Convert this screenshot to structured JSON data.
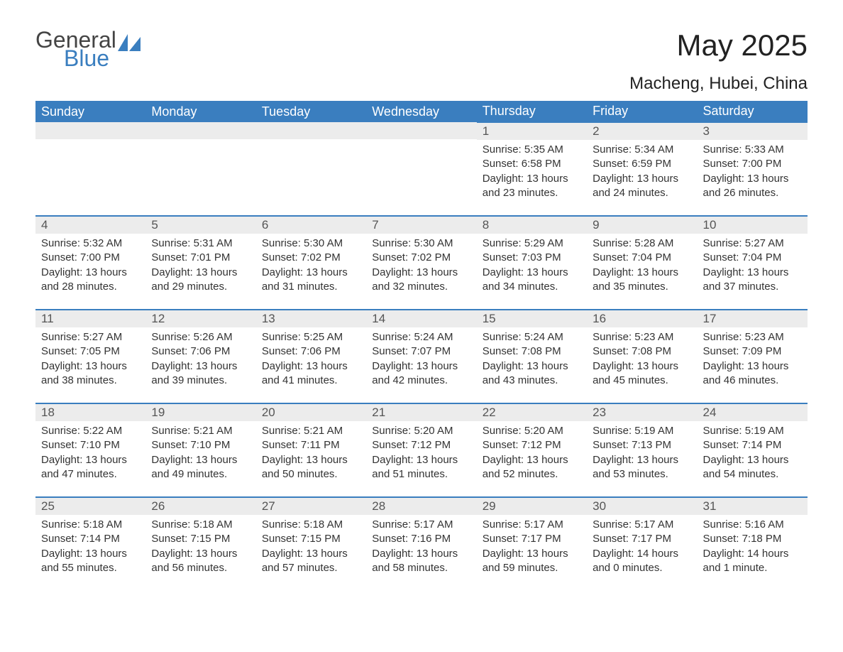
{
  "brand": {
    "word1": "General",
    "word2": "Blue"
  },
  "colors": {
    "brand_blue": "#3a7ebf",
    "header_bg": "#3a7ebf",
    "header_text": "#ffffff",
    "daynum_bg": "#ececec",
    "daynum_text": "#555555",
    "body_text": "#333333",
    "page_bg": "#ffffff",
    "row_divider": "#3a7ebf"
  },
  "title": "May 2025",
  "location": "Macheng, Hubei, China",
  "day_headers": [
    "Sunday",
    "Monday",
    "Tuesday",
    "Wednesday",
    "Thursday",
    "Friday",
    "Saturday"
  ],
  "typography": {
    "title_fontsize": 42,
    "location_fontsize": 24,
    "header_fontsize": 18,
    "daynum_fontsize": 17,
    "body_fontsize": 15
  },
  "weeks": [
    [
      null,
      null,
      null,
      null,
      {
        "n": "1",
        "sr": "Sunrise: 5:35 AM",
        "ss": "Sunset: 6:58 PM",
        "dl": "Daylight: 13 hours and 23 minutes."
      },
      {
        "n": "2",
        "sr": "Sunrise: 5:34 AM",
        "ss": "Sunset: 6:59 PM",
        "dl": "Daylight: 13 hours and 24 minutes."
      },
      {
        "n": "3",
        "sr": "Sunrise: 5:33 AM",
        "ss": "Sunset: 7:00 PM",
        "dl": "Daylight: 13 hours and 26 minutes."
      }
    ],
    [
      {
        "n": "4",
        "sr": "Sunrise: 5:32 AM",
        "ss": "Sunset: 7:00 PM",
        "dl": "Daylight: 13 hours and 28 minutes."
      },
      {
        "n": "5",
        "sr": "Sunrise: 5:31 AM",
        "ss": "Sunset: 7:01 PM",
        "dl": "Daylight: 13 hours and 29 minutes."
      },
      {
        "n": "6",
        "sr": "Sunrise: 5:30 AM",
        "ss": "Sunset: 7:02 PM",
        "dl": "Daylight: 13 hours and 31 minutes."
      },
      {
        "n": "7",
        "sr": "Sunrise: 5:30 AM",
        "ss": "Sunset: 7:02 PM",
        "dl": "Daylight: 13 hours and 32 minutes."
      },
      {
        "n": "8",
        "sr": "Sunrise: 5:29 AM",
        "ss": "Sunset: 7:03 PM",
        "dl": "Daylight: 13 hours and 34 minutes."
      },
      {
        "n": "9",
        "sr": "Sunrise: 5:28 AM",
        "ss": "Sunset: 7:04 PM",
        "dl": "Daylight: 13 hours and 35 minutes."
      },
      {
        "n": "10",
        "sr": "Sunrise: 5:27 AM",
        "ss": "Sunset: 7:04 PM",
        "dl": "Daylight: 13 hours and 37 minutes."
      }
    ],
    [
      {
        "n": "11",
        "sr": "Sunrise: 5:27 AM",
        "ss": "Sunset: 7:05 PM",
        "dl": "Daylight: 13 hours and 38 minutes."
      },
      {
        "n": "12",
        "sr": "Sunrise: 5:26 AM",
        "ss": "Sunset: 7:06 PM",
        "dl": "Daylight: 13 hours and 39 minutes."
      },
      {
        "n": "13",
        "sr": "Sunrise: 5:25 AM",
        "ss": "Sunset: 7:06 PM",
        "dl": "Daylight: 13 hours and 41 minutes."
      },
      {
        "n": "14",
        "sr": "Sunrise: 5:24 AM",
        "ss": "Sunset: 7:07 PM",
        "dl": "Daylight: 13 hours and 42 minutes."
      },
      {
        "n": "15",
        "sr": "Sunrise: 5:24 AM",
        "ss": "Sunset: 7:08 PM",
        "dl": "Daylight: 13 hours and 43 minutes."
      },
      {
        "n": "16",
        "sr": "Sunrise: 5:23 AM",
        "ss": "Sunset: 7:08 PM",
        "dl": "Daylight: 13 hours and 45 minutes."
      },
      {
        "n": "17",
        "sr": "Sunrise: 5:23 AM",
        "ss": "Sunset: 7:09 PM",
        "dl": "Daylight: 13 hours and 46 minutes."
      }
    ],
    [
      {
        "n": "18",
        "sr": "Sunrise: 5:22 AM",
        "ss": "Sunset: 7:10 PM",
        "dl": "Daylight: 13 hours and 47 minutes."
      },
      {
        "n": "19",
        "sr": "Sunrise: 5:21 AM",
        "ss": "Sunset: 7:10 PM",
        "dl": "Daylight: 13 hours and 49 minutes."
      },
      {
        "n": "20",
        "sr": "Sunrise: 5:21 AM",
        "ss": "Sunset: 7:11 PM",
        "dl": "Daylight: 13 hours and 50 minutes."
      },
      {
        "n": "21",
        "sr": "Sunrise: 5:20 AM",
        "ss": "Sunset: 7:12 PM",
        "dl": "Daylight: 13 hours and 51 minutes."
      },
      {
        "n": "22",
        "sr": "Sunrise: 5:20 AM",
        "ss": "Sunset: 7:12 PM",
        "dl": "Daylight: 13 hours and 52 minutes."
      },
      {
        "n": "23",
        "sr": "Sunrise: 5:19 AM",
        "ss": "Sunset: 7:13 PM",
        "dl": "Daylight: 13 hours and 53 minutes."
      },
      {
        "n": "24",
        "sr": "Sunrise: 5:19 AM",
        "ss": "Sunset: 7:14 PM",
        "dl": "Daylight: 13 hours and 54 minutes."
      }
    ],
    [
      {
        "n": "25",
        "sr": "Sunrise: 5:18 AM",
        "ss": "Sunset: 7:14 PM",
        "dl": "Daylight: 13 hours and 55 minutes."
      },
      {
        "n": "26",
        "sr": "Sunrise: 5:18 AM",
        "ss": "Sunset: 7:15 PM",
        "dl": "Daylight: 13 hours and 56 minutes."
      },
      {
        "n": "27",
        "sr": "Sunrise: 5:18 AM",
        "ss": "Sunset: 7:15 PM",
        "dl": "Daylight: 13 hours and 57 minutes."
      },
      {
        "n": "28",
        "sr": "Sunrise: 5:17 AM",
        "ss": "Sunset: 7:16 PM",
        "dl": "Daylight: 13 hours and 58 minutes."
      },
      {
        "n": "29",
        "sr": "Sunrise: 5:17 AM",
        "ss": "Sunset: 7:17 PM",
        "dl": "Daylight: 13 hours and 59 minutes."
      },
      {
        "n": "30",
        "sr": "Sunrise: 5:17 AM",
        "ss": "Sunset: 7:17 PM",
        "dl": "Daylight: 14 hours and 0 minutes."
      },
      {
        "n": "31",
        "sr": "Sunrise: 5:16 AM",
        "ss": "Sunset: 7:18 PM",
        "dl": "Daylight: 14 hours and 1 minute."
      }
    ]
  ]
}
